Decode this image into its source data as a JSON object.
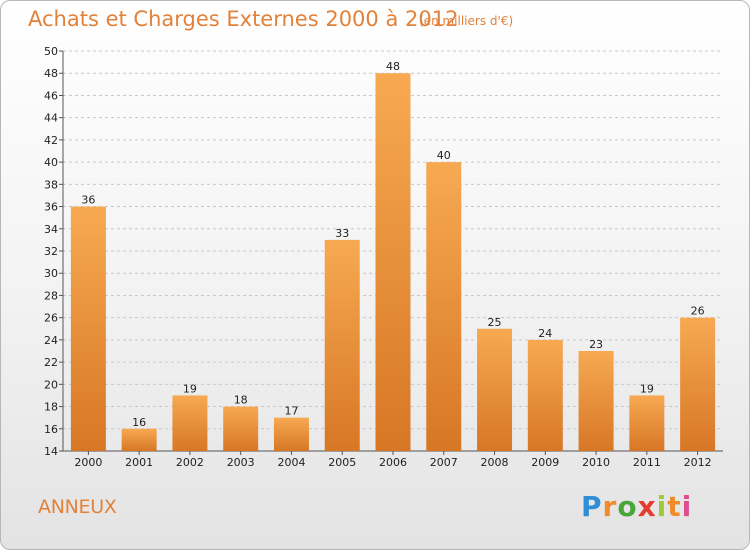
{
  "header": {
    "title": "Achats et Charges Externes 2000 à 2012",
    "unit": "(en milliers d'€)"
  },
  "footer": {
    "commune": "ANNEUX",
    "logo_letters": [
      "P",
      "r",
      "o",
      "x",
      "i",
      "t",
      "i"
    ]
  },
  "colors": {
    "accent": "#e2823a",
    "bar_light": "#f7a952",
    "bar_dark": "#d77726"
  },
  "chart_data": {
    "type": "bar",
    "title": "Achats et Charges Externes 2000 à 2012",
    "subtitle": "(en milliers d'€)",
    "categories": [
      "2000",
      "2001",
      "2002",
      "2003",
      "2004",
      "2005",
      "2006",
      "2007",
      "2008",
      "2009",
      "2010",
      "2011",
      "2012"
    ],
    "values": [
      36,
      16,
      19,
      18,
      17,
      33,
      48,
      40,
      25,
      24,
      23,
      19,
      26
    ],
    "ylim": [
      14,
      50
    ],
    "yticks": [
      14,
      16,
      18,
      20,
      22,
      24,
      26,
      28,
      30,
      32,
      34,
      36,
      38,
      40,
      42,
      44,
      46,
      48,
      50
    ],
    "grid": "horizontal dashed",
    "legend": "none"
  }
}
